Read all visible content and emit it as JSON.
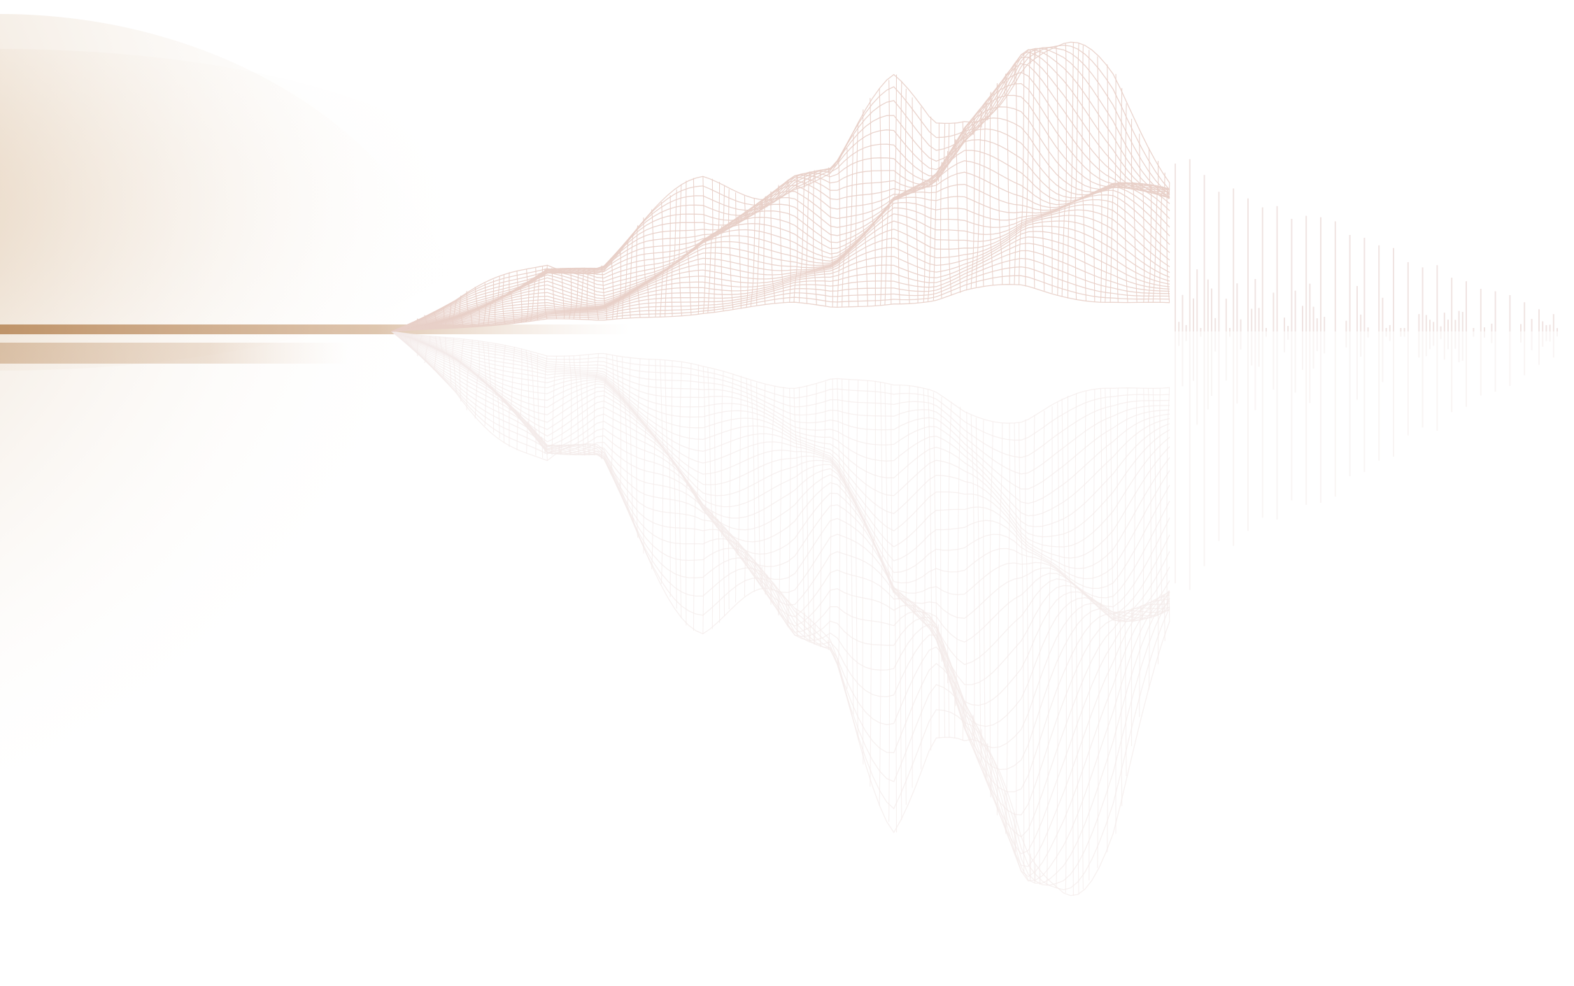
{
  "colors": {
    "background": "#ffffff",
    "glow": "#c49a6c",
    "mesh": "#e8cfc8",
    "mesh_reflection": "#f3ebe9",
    "bars": "#f0e4e2"
  },
  "artwork": {
    "subject": "wireframe-mountain-with-reflection"
  }
}
